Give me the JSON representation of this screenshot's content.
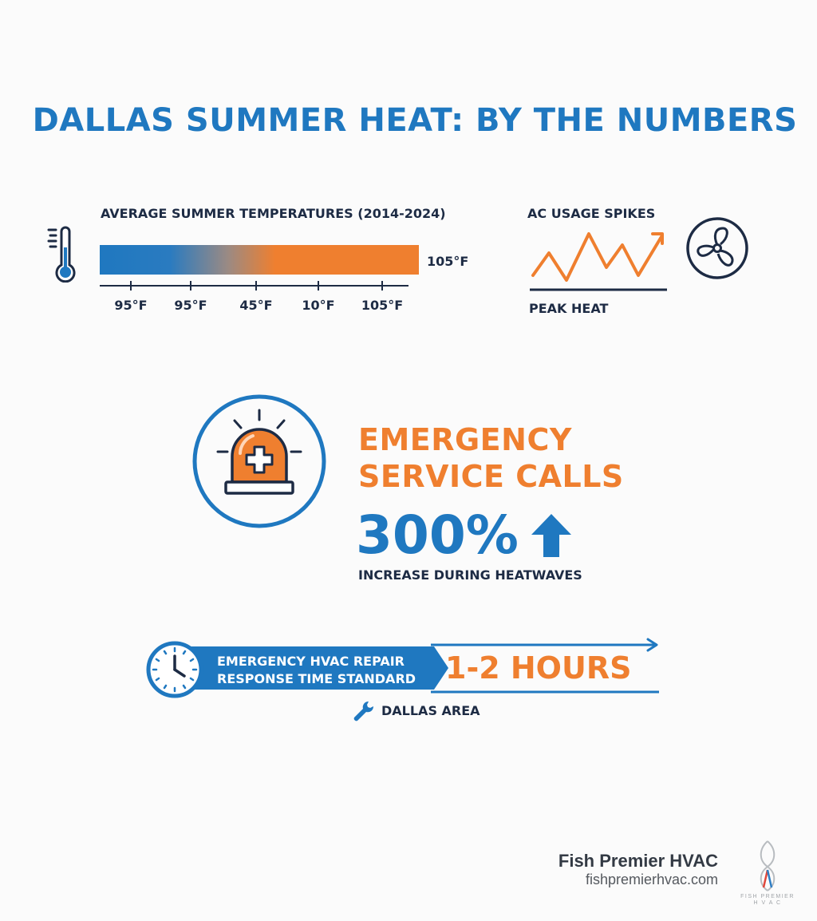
{
  "title": "DALLAS SUMMER HEAT: BY THE NUMBERS",
  "temperatures": {
    "title": "AVERAGE SUMMER TEMPERATURES (2014-2024)",
    "bar_end_label": "105°F",
    "ticks": [
      "95°F",
      "95°F",
      "45°F",
      "10°F",
      "105°F"
    ]
  },
  "ac_usage": {
    "title": "AC USAGE SPIKES",
    "baseline_label": "PEAK HEAT"
  },
  "emergency": {
    "title_line1": "EMERGENCY",
    "title_line2": "SERVICE CALLS",
    "percent": "300%",
    "caption": "INCREASE DURING HEATWAVES"
  },
  "response": {
    "label_line1": "EMERGENCY HVAC REPAIR",
    "label_line2": "RESPONSE TIME STANDARD",
    "time": "1-2 HOURS",
    "area": "DALLAS AREA"
  },
  "brand": {
    "name": "Fish Premier HVAC",
    "url": "fishpremierhvac.com",
    "logo_line1": "FISH PREMIER",
    "logo_line2": "H V A C"
  },
  "colors": {
    "blue": "#1f78c0",
    "orange": "#ef7f2f",
    "navy": "#1d2b44"
  },
  "icons": [
    "thermometer-icon",
    "fan-icon",
    "siren-icon",
    "up-arrow-icon",
    "clock-icon",
    "wrench-icon",
    "fish-logo-icon"
  ]
}
